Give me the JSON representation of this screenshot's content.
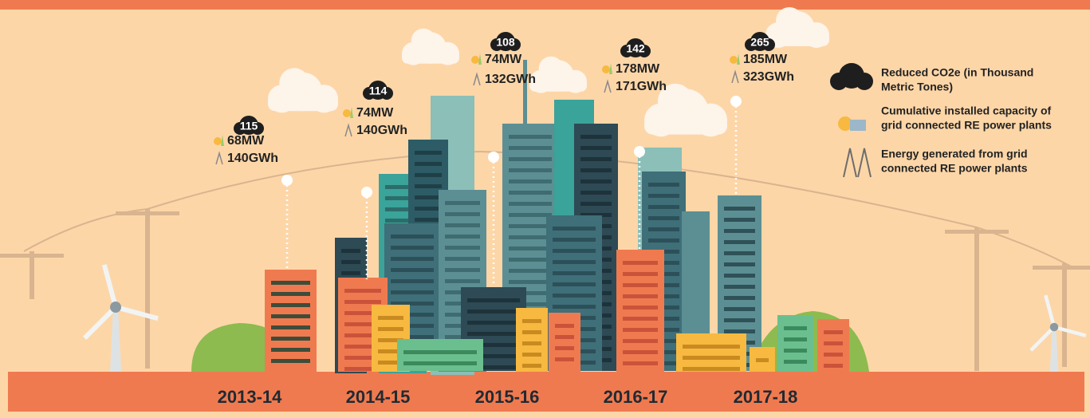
{
  "columns": [
    {
      "year": "2013-14",
      "co2": "115",
      "capacity": "68MW",
      "energy": "140GWh"
    },
    {
      "year": "2014-15",
      "co2": "114",
      "capacity": "74MW",
      "energy": "140GWh"
    },
    {
      "year": "2015-16",
      "co2": "108",
      "capacity": "74MW",
      "energy": "132GWh"
    },
    {
      "year": "2016-17",
      "co2": "142",
      "capacity": "178MW",
      "energy": "171GWh"
    },
    {
      "year": "2017-18",
      "co2": "265",
      "capacity": "185MW",
      "energy": "323GWh"
    }
  ],
  "legend": [
    {
      "lines": [
        "Reduced CO2e (in Thousand",
        "Metric Tones)"
      ]
    },
    {
      "lines": [
        "Cumulative installed capacity of",
        "grid connected RE power plants"
      ]
    },
    {
      "lines": [
        "Energy generated from grid",
        "connected RE power plants"
      ]
    }
  ]
}
